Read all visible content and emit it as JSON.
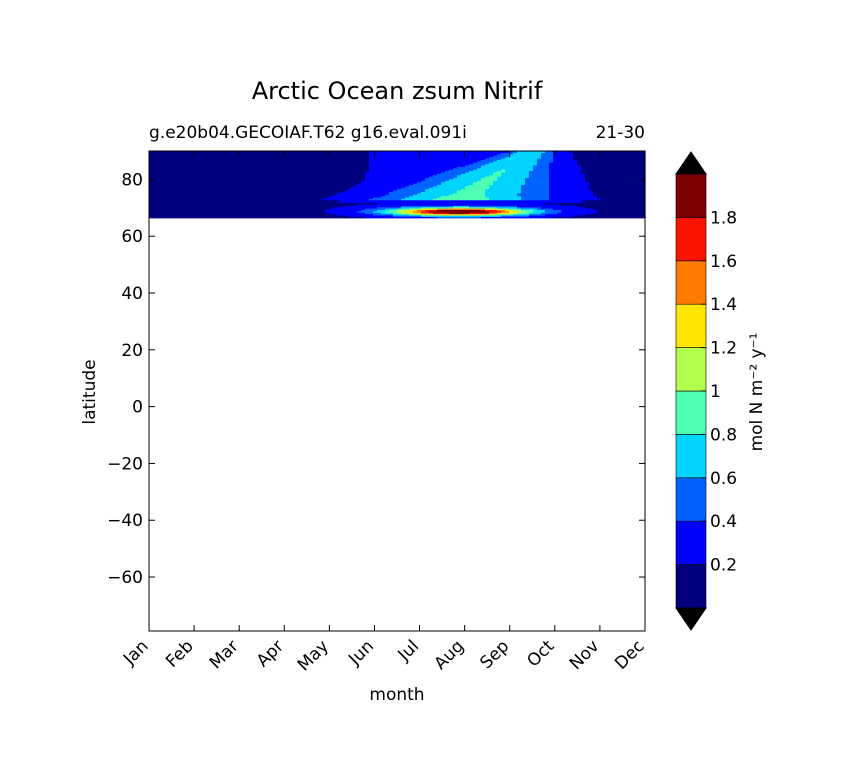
{
  "chart_data": {
    "type": "heatmap",
    "title": "Arctic Ocean zsum Nitrif",
    "subtitle_left": "g.e20b04.GECOIAF.T62 g16.eval.091i",
    "subtitle_right": "21-30",
    "xlabel": "month",
    "ylabel": "latitude",
    "x_categories": [
      "Jan",
      "Feb",
      "Mar",
      "Apr",
      "May",
      "Jun",
      "Jul",
      "Aug",
      "Sep",
      "Oct",
      "Nov",
      "Dec"
    ],
    "y_ticks": [
      "80",
      "60",
      "40",
      "20",
      "0",
      "−20",
      "−40",
      "−60"
    ],
    "y_tick_values": [
      80,
      60,
      40,
      20,
      0,
      -20,
      -40,
      -60
    ],
    "ylim": [
      -79,
      90
    ],
    "data_lat_range": [
      66.5,
      90
    ],
    "colorbar": {
      "label": "mol N m⁻² y⁻¹",
      "levels": [
        0,
        0.2,
        0.4,
        0.6,
        0.8,
        1.0,
        1.2,
        1.4,
        1.6,
        1.8,
        2.0
      ],
      "tick_labels": [
        "0.2",
        "0.4",
        "0.6",
        "0.8",
        "1",
        "1.2",
        "1.4",
        "1.6",
        "1.8"
      ],
      "tick_values": [
        0.2,
        0.4,
        0.6,
        0.8,
        1.0,
        1.2,
        1.4,
        1.6,
        1.8
      ],
      "colors": [
        "#00007f",
        "#0000ff",
        "#0063ff",
        "#00d4ff",
        "#4dffb3",
        "#b3ff4d",
        "#ffe600",
        "#ff7b00",
        "#ff1300",
        "#7f0000"
      ],
      "under_color": "#000000",
      "over_color": "#000000"
    },
    "grid": false
  }
}
